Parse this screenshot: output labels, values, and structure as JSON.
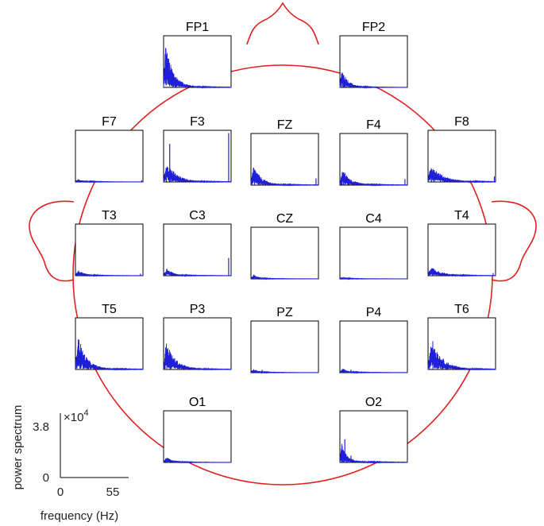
{
  "colors": {
    "head_outline": "#e02020",
    "spectrum": "#1f1fd8",
    "frame": "#000000"
  },
  "chart_data": {
    "type": "line",
    "layout": "topographic grid of per-electrode power spectra on a head outline",
    "xlim": [
      0,
      55
    ],
    "ylim": [
      0,
      38000
    ],
    "scale": {
      "x_min_label": "0",
      "x_max_label": "55",
      "y_min_label": "0",
      "y_max_label": "3.8",
      "y_multiplier_label": "×10",
      "y_multiplier_exponent": "4",
      "xlabel": "frequency (Hz)",
      "ylabel": "power spectrum"
    },
    "channels": [
      {
        "name": "FP1",
        "peak": 32000,
        "peak_freq": 1.5,
        "decay": 6,
        "floor": 0.05,
        "spikes": []
      },
      {
        "name": "FP2",
        "peak": 14000,
        "peak_freq": 1.5,
        "decay": 5,
        "floor": 0.05,
        "spikes": []
      },
      {
        "name": "F7",
        "peak": 1800,
        "peak_freq": 2.0,
        "decay": 6,
        "floor": 0.25,
        "spikes": [
          {
            "f": 54,
            "v": 1200
          }
        ]
      },
      {
        "name": "F3",
        "peak": 15000,
        "peak_freq": 2.5,
        "decay": 7,
        "floor": 0.1,
        "spikes": [
          {
            "f": 5,
            "v": 28000
          },
          {
            "f": 53,
            "v": 36000
          }
        ]
      },
      {
        "name": "FZ",
        "peak": 14000,
        "peak_freq": 2.0,
        "decay": 6,
        "floor": 0.1,
        "spikes": [
          {
            "f": 53,
            "v": 5000
          }
        ]
      },
      {
        "name": "F4",
        "peak": 11500,
        "peak_freq": 2.0,
        "decay": 6,
        "floor": 0.12,
        "spikes": [
          {
            "f": 53,
            "v": 4500
          }
        ]
      },
      {
        "name": "F8",
        "peak": 13000,
        "peak_freq": 2.0,
        "decay": 8,
        "floor": 0.15,
        "spikes": [
          {
            "f": 54,
            "v": 4000
          }
        ]
      },
      {
        "name": "T3",
        "peak": 3800,
        "peak_freq": 2.0,
        "decay": 5,
        "floor": 0.15,
        "spikes": [
          {
            "f": 53,
            "v": 1500
          }
        ]
      },
      {
        "name": "C3",
        "peak": 5000,
        "peak_freq": 2.5,
        "decay": 5,
        "floor": 0.15,
        "spikes": [
          {
            "f": 53,
            "v": 13000
          }
        ]
      },
      {
        "name": "CZ",
        "peak": 3200,
        "peak_freq": 2.0,
        "decay": 4,
        "floor": 0.15,
        "spikes": []
      },
      {
        "name": "C4",
        "peak": 1300,
        "peak_freq": 2.0,
        "decay": 4,
        "floor": 0.25,
        "spikes": []
      },
      {
        "name": "T4",
        "peak": 6500,
        "peak_freq": 2.0,
        "decay": 8,
        "floor": 0.15,
        "spikes": [
          {
            "f": 53,
            "v": 2000
          }
        ]
      },
      {
        "name": "T5",
        "peak": 25000,
        "peak_freq": 2.0,
        "decay": 6,
        "floor": 0.08,
        "spikes": []
      },
      {
        "name": "P3",
        "peak": 20000,
        "peak_freq": 2.0,
        "decay": 7,
        "floor": 0.08,
        "spikes": []
      },
      {
        "name": "PZ",
        "peak": 2500,
        "peak_freq": 2.0,
        "decay": 4,
        "floor": 0.2,
        "spikes": [
          {
            "f": 9,
            "v": 2000
          }
        ]
      },
      {
        "name": "P4",
        "peak": 3000,
        "peak_freq": 2.0,
        "decay": 4,
        "floor": 0.2,
        "spikes": [
          {
            "f": 9,
            "v": 2200
          }
        ]
      },
      {
        "name": "T6",
        "peak": 23000,
        "peak_freq": 2.5,
        "decay": 8,
        "floor": 0.08,
        "spikes": []
      },
      {
        "name": "O1",
        "peak": 3500,
        "peak_freq": 2.0,
        "decay": 6,
        "floor": 0.15,
        "spikes": []
      },
      {
        "name": "O2",
        "peak": 13000,
        "peak_freq": 1.5,
        "decay": 4,
        "floor": 0.12,
        "spikes": [
          {
            "f": 4,
            "v": 17000
          },
          {
            "f": 9,
            "v": 5000
          }
        ]
      }
    ]
  }
}
